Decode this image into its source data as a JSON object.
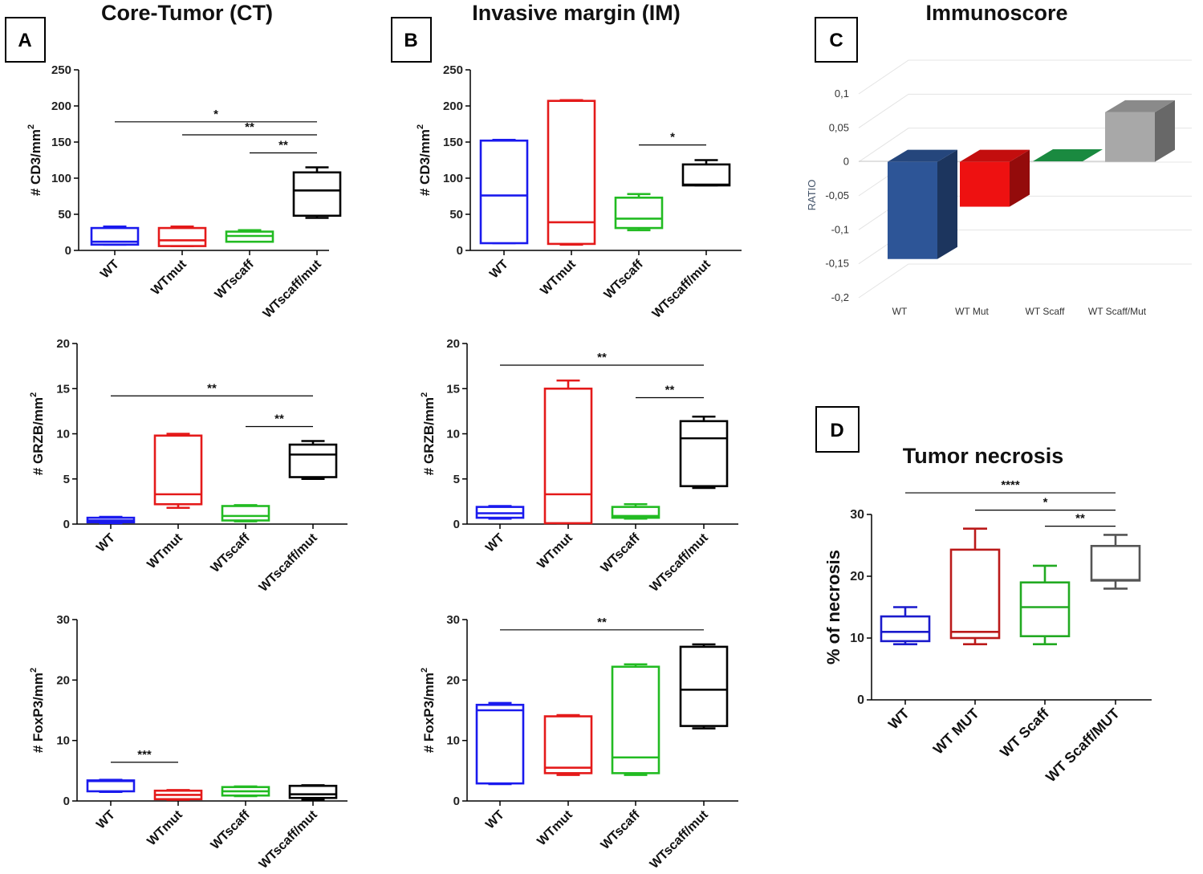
{
  "titles": {
    "ct": "Core-Tumor  (CT)",
    "im": "Invasive margin  (IM)",
    "immunoscore": "Immunoscore",
    "necrosis": "Tumor necrosis"
  },
  "panel_letters": {
    "a": "A",
    "b": "B",
    "c": "C",
    "d": "D"
  },
  "colors": {
    "WT": "#1a1aee",
    "WTmut": "#e41a1a",
    "WTscaff": "#22bb22",
    "WTscaffmut": "#000000",
    "necrosis_WT": "#1a1acc",
    "necrosis_WTMUT": "#bb1a1a",
    "necrosis_WTScaff": "#22aa22",
    "necrosis_WTScaffMUT": "#555555"
  },
  "chart_data": [
    {
      "id": "ct_cd3",
      "type": "box",
      "categories": [
        "WT",
        "WTmut",
        "WTscaff",
        "WTscaff/mut"
      ],
      "ylabel": "# CD3/mm",
      "ylabel_sup": "2",
      "ylim": [
        0,
        250
      ],
      "yticks": [
        "0",
        "50",
        "100",
        "150",
        "200",
        "250"
      ],
      "boxes": [
        {
          "min": 8,
          "q1": 8,
          "median": 12,
          "q3": 31,
          "max": 33
        },
        {
          "min": 6,
          "q1": 6,
          "median": 14,
          "q3": 31,
          "max": 33
        },
        {
          "min": 12,
          "q1": 12,
          "median": 20,
          "q3": 26,
          "max": 28
        },
        {
          "min": 45,
          "q1": 48,
          "median": 83,
          "q3": 108,
          "max": 115
        }
      ],
      "significance": [
        {
          "from": 0,
          "to": 3,
          "label": "*",
          "y": 178
        },
        {
          "from": 1,
          "to": 3,
          "label": "**",
          "y": 160
        },
        {
          "from": 2,
          "to": 3,
          "label": "**",
          "y": 135
        }
      ]
    },
    {
      "id": "ct_grzb",
      "type": "box",
      "categories": [
        "WT",
        "WTmut",
        "WTscaff",
        "WTscaff/mut"
      ],
      "ylabel": "# GRZB/mm",
      "ylabel_sup": "2",
      "ylim": [
        0,
        20
      ],
      "yticks": [
        "0",
        "5",
        "10",
        "15",
        "20"
      ],
      "boxes": [
        {
          "min": 0.1,
          "q1": 0.2,
          "median": 0.4,
          "q3": 0.7,
          "max": 0.8
        },
        {
          "min": 1.8,
          "q1": 2.2,
          "median": 3.3,
          "q3": 9.8,
          "max": 10
        },
        {
          "min": 0.3,
          "q1": 0.4,
          "median": 0.9,
          "q3": 2.0,
          "max": 2.1
        },
        {
          "min": 5,
          "q1": 5.2,
          "median": 7.7,
          "q3": 8.8,
          "max": 9.2
        }
      ],
      "significance": [
        {
          "from": 0,
          "to": 3,
          "label": "**",
          "y": 14.2
        },
        {
          "from": 2,
          "to": 3,
          "label": "**",
          "y": 10.8
        }
      ]
    },
    {
      "id": "ct_foxp3",
      "type": "box",
      "categories": [
        "WT",
        "WTmut",
        "WTscaff",
        "WTscaff/mut"
      ],
      "ylabel": "# FoxP3/mm",
      "ylabel_sup": "2",
      "ylim": [
        0,
        30
      ],
      "yticks": [
        "0",
        "10",
        "20",
        "30"
      ],
      "boxes": [
        {
          "min": 1.5,
          "q1": 1.6,
          "median": 3.3,
          "q3": 3.4,
          "max": 3.5
        },
        {
          "min": 0.2,
          "q1": 0.3,
          "median": 1.0,
          "q3": 1.7,
          "max": 1.8
        },
        {
          "min": 0.8,
          "q1": 0.9,
          "median": 1.6,
          "q3": 2.3,
          "max": 2.4
        },
        {
          "min": 0.2,
          "q1": 0.5,
          "median": 1.1,
          "q3": 2.5,
          "max": 2.6
        }
      ],
      "significance": [
        {
          "from": 0,
          "to": 1,
          "label": "***",
          "y": 6.4
        }
      ]
    },
    {
      "id": "im_cd3",
      "type": "box",
      "categories": [
        "WT",
        "WTmut",
        "WTscaff",
        "WTscaff/mut"
      ],
      "ylabel": "# CD3/mm",
      "ylabel_sup": "2",
      "ylim": [
        0,
        250
      ],
      "yticks": [
        "0",
        "50",
        "100",
        "150",
        "200",
        "250"
      ],
      "boxes": [
        {
          "min": 10,
          "q1": 10,
          "median": 76,
          "q3": 152,
          "max": 153
        },
        {
          "min": 8,
          "q1": 9,
          "median": 39,
          "q3": 207,
          "max": 208
        },
        {
          "min": 28,
          "q1": 31,
          "median": 44,
          "q3": 73,
          "max": 78
        },
        {
          "min": 90,
          "q1": 90,
          "median": 91,
          "q3": 119,
          "max": 125
        }
      ],
      "significance": [
        {
          "from": 2,
          "to": 3,
          "label": "*",
          "y": 146
        }
      ]
    },
    {
      "id": "im_grzb",
      "type": "box",
      "categories": [
        "WT",
        "WTmut",
        "WTscaff",
        "WTscaff/mut"
      ],
      "ylabel": "# GRZB/mm",
      "ylabel_sup": "2",
      "ylim": [
        0,
        20
      ],
      "yticks": [
        "0",
        "5",
        "10",
        "15",
        "20"
      ],
      "boxes": [
        {
          "min": 0.6,
          "q1": 0.7,
          "median": 1.2,
          "q3": 1.9,
          "max": 2.0
        },
        {
          "min": 0.1,
          "q1": 0.1,
          "median": 3.3,
          "q3": 15,
          "max": 15.9
        },
        {
          "min": 0.6,
          "q1": 0.7,
          "median": 0.9,
          "q3": 1.9,
          "max": 2.2
        },
        {
          "min": 4,
          "q1": 4.2,
          "median": 9.5,
          "q3": 11.4,
          "max": 11.9
        }
      ],
      "significance": [
        {
          "from": 0,
          "to": 3,
          "label": "**",
          "y": 17.6
        },
        {
          "from": 2,
          "to": 3,
          "label": "**",
          "y": 14
        }
      ]
    },
    {
      "id": "im_foxp3",
      "type": "box",
      "categories": [
        "WT",
        "WTmut",
        "WTscaff",
        "WTscaff/mut"
      ],
      "ylabel": "# FoxP3/mm",
      "ylabel_sup": "2",
      "ylim": [
        0,
        30
      ],
      "yticks": [
        "0",
        "10",
        "20",
        "30"
      ],
      "boxes": [
        {
          "min": 2.8,
          "q1": 2.9,
          "median": 15,
          "q3": 15.9,
          "max": 16.2
        },
        {
          "min": 4.3,
          "q1": 4.6,
          "median": 5.5,
          "q3": 14.0,
          "max": 14.2
        },
        {
          "min": 4.3,
          "q1": 4.6,
          "median": 7.2,
          "q3": 22.2,
          "max": 22.6
        },
        {
          "min": 12,
          "q1": 12.4,
          "median": 18.4,
          "q3": 25.5,
          "max": 25.9
        }
      ],
      "significance": [
        {
          "from": 0,
          "to": 3,
          "label": "**",
          "y": 28.3
        }
      ]
    },
    {
      "id": "immunoscore",
      "type": "bar",
      "categories": [
        "WT",
        "WT Mut",
        "WT Scaff",
        "WT Scaff/Mut"
      ],
      "values": [
        -0.143,
        -0.066,
        0.0,
        0.073
      ],
      "ylabel": "RATIO",
      "ylim": [
        -0.2,
        0.1
      ],
      "yticks": [
        "0,1",
        "0,05",
        "0",
        "-0,05",
        "-0,1",
        "-0,15",
        "-0,2"
      ],
      "colors": [
        "#2d5597",
        "#ee1111",
        "#1a8a40",
        "#a8a8a8"
      ]
    },
    {
      "id": "necrosis",
      "type": "box",
      "categories": [
        "WT",
        "WT MUT",
        "WT Scaff",
        "WT Scaff/MUT"
      ],
      "ylabel": "% of necrosis",
      "ylim": [
        0,
        30
      ],
      "yticks": [
        "0",
        "10",
        "20",
        "30"
      ],
      "boxes": [
        {
          "min": 9,
          "q1": 9.5,
          "median": 11,
          "q3": 13.5,
          "max": 15
        },
        {
          "min": 9,
          "q1": 10,
          "median": 11,
          "q3": 24.3,
          "max": 27.7
        },
        {
          "min": 9,
          "q1": 10.3,
          "median": 15,
          "q3": 19,
          "max": 21.7
        },
        {
          "min": 18,
          "q1": 19.3,
          "median": 19.4,
          "q3": 24.9,
          "max": 26.7
        }
      ],
      "significance": [
        {
          "from": 0,
          "to": 3,
          "label": "****",
          "y": 33.5
        },
        {
          "from": 1,
          "to": 3,
          "label": "*",
          "y": 30.7
        },
        {
          "from": 2,
          "to": 3,
          "label": "**",
          "y": 28.1
        }
      ]
    }
  ]
}
